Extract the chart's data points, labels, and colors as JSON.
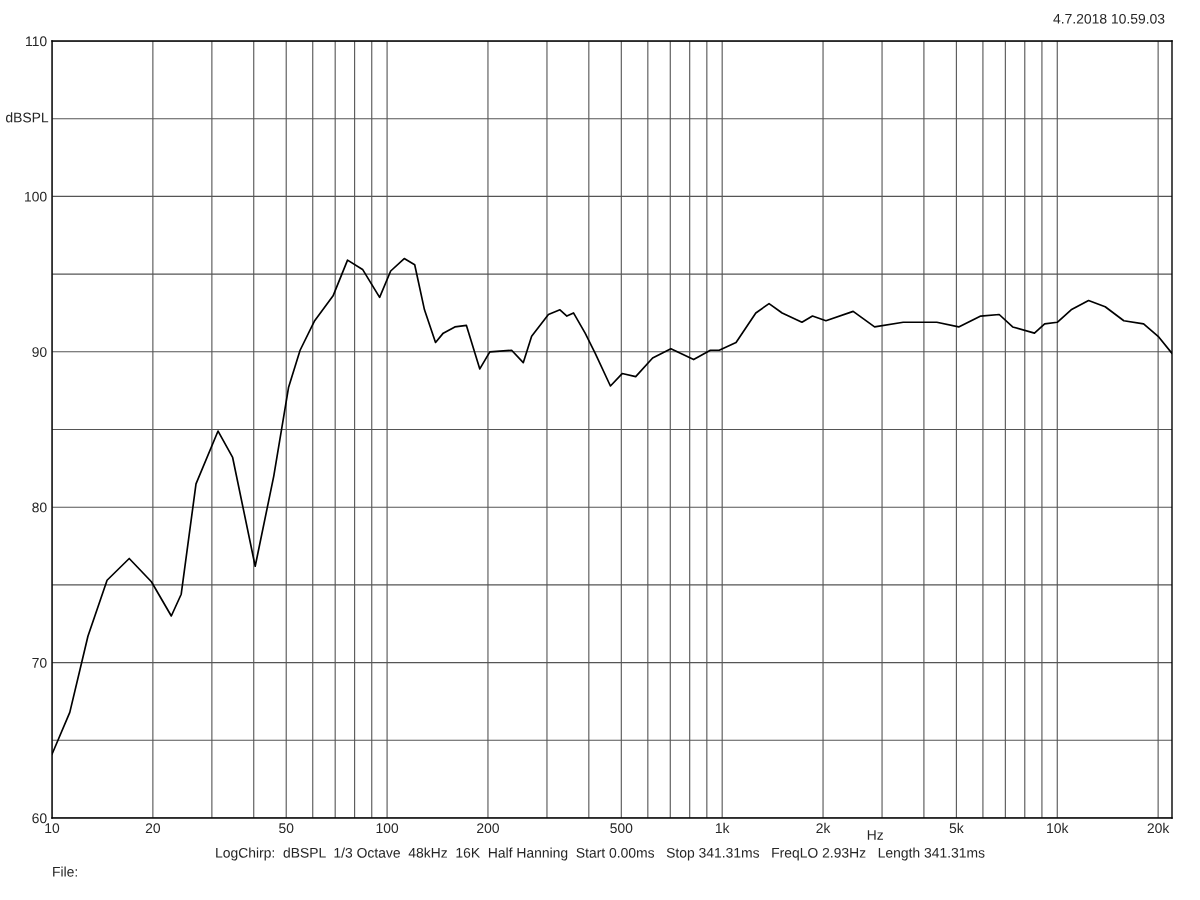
{
  "chart_data": {
    "type": "line",
    "x": [
      10,
      11.3,
      12.8,
      14.6,
      17.0,
      19.8,
      22.7,
      24.3,
      26.9,
      31.3,
      34.6,
      40.4,
      45.9,
      50.8,
      55,
      60.8,
      69,
      76.2,
      84.5,
      95,
      102.5,
      112.5,
      120.9,
      129.3,
      139.5,
      147.1,
      159.3,
      172.5,
      189.1,
      202.6,
      235.3,
      254.9,
      270,
      303,
      328,
      344,
      360,
      390,
      418,
      464,
      503,
      552,
      620,
      703,
      822,
      922,
      980,
      1100,
      1260,
      1380,
      1510,
      1730,
      1860,
      2040,
      2460,
      2850,
      3470,
      4370,
      5080,
      5910,
      6710,
      7360,
      8550,
      9170,
      10000,
      11000,
      12400,
      13900,
      15800,
      18100,
      20000,
      22000
    ],
    "series": [
      {
        "color": "#000000",
        "values": [
          64.1,
          66.8,
          71.7,
          75.3,
          76.7,
          75.2,
          73.0,
          74.4,
          81.5,
          84.9,
          83.2,
          76.2,
          82.0,
          87.7,
          90.1,
          92.0,
          93.6,
          95.9,
          95.3,
          93.5,
          95.2,
          96.0,
          95.6,
          92.7,
          90.6,
          91.2,
          91.6,
          91.7,
          88.9,
          90.0,
          90.1,
          89.3,
          91.0,
          92.4,
          92.7,
          92.3,
          92.5,
          91.2,
          89.9,
          87.8,
          88.6,
          88.4,
          89.6,
          90.2,
          89.5,
          90.1,
          90.1,
          90.6,
          92.5,
          93.1,
          92.5,
          91.9,
          92.3,
          92.0,
          92.6,
          91.6,
          91.9,
          91.9,
          91.6,
          92.3,
          92.4,
          91.6,
          91.2,
          91.8,
          91.9,
          92.7,
          93.3,
          92.9,
          92.0,
          91.8,
          91.0,
          89.9
        ]
      }
    ],
    "xlabel": "Hz",
    "ylabel": "dBSPL",
    "log": "x",
    "grid": true,
    "marker": "none",
    "line_style": "solid",
    "xlim": [
      10,
      22000
    ],
    "ylim": [
      60,
      110
    ],
    "xticks": [
      10,
      20,
      {
        "value": 30,
        "label": null
      },
      {
        "value": 40,
        "label": null
      },
      50,
      {
        "value": 60,
        "label": null
      },
      {
        "value": 70,
        "label": null
      },
      {
        "value": 80,
        "label": null
      },
      {
        "value": 90,
        "label": null
      },
      100,
      200,
      {
        "value": 300,
        "label": null
      },
      {
        "value": 400,
        "label": null
      },
      500,
      {
        "value": 600,
        "label": null
      },
      {
        "value": 700,
        "label": null
      },
      {
        "value": 800,
        "label": null
      },
      {
        "value": 900,
        "label": null
      },
      {
        "value": 1000,
        "label": "1k"
      },
      {
        "value": 2000,
        "label": "2k"
      },
      {
        "value": 3000,
        "label": null
      },
      {
        "value": 4000,
        "label": null
      },
      {
        "value": 5000,
        "label": "5k"
      },
      {
        "value": 6000,
        "label": null
      },
      {
        "value": 7000,
        "label": null
      },
      {
        "value": 8000,
        "label": null
      },
      {
        "value": 9000,
        "label": null
      },
      {
        "value": 10000,
        "label": "10k"
      },
      {
        "value": 20000,
        "label": "20k"
      }
    ],
    "yticks": [
      60,
      {
        "value": 65,
        "label": null
      },
      70,
      {
        "value": 75,
        "label": null
      },
      80,
      {
        "value": 85,
        "label": null
      },
      90,
      {
        "value": 95,
        "label": null
      },
      100,
      {
        "value": 105,
        "label": null
      },
      110
    ],
    "annotations": [
      "4.7.2018 10.59.03",
      "LogChirp:  dBSPL  1/3 Octave  48kHz  16K  Half Hanning  Start 0.00ms   Stop 341.31ms   FreqLO 2.93Hz   Length 341.31ms",
      "File:"
    ]
  }
}
